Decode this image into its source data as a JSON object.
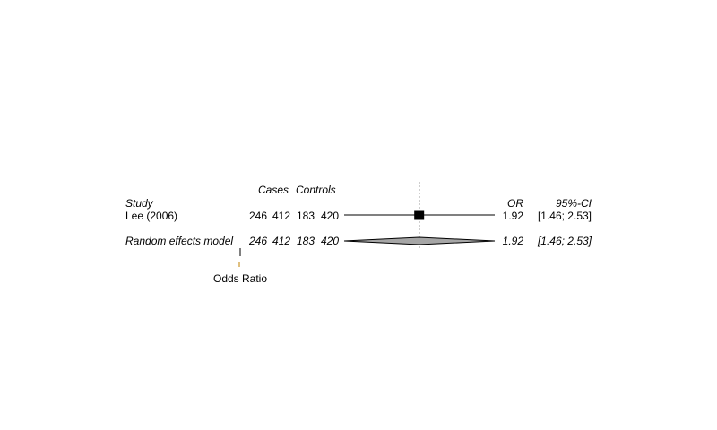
{
  "chart_data": {
    "type": "forest",
    "header": {
      "study": "Study",
      "cases": "Cases",
      "controls": "Controls",
      "or": "OR",
      "ci": "95%-CI"
    },
    "studies": [
      {
        "name": "Lee (2006)",
        "cases_events": "246",
        "cases_total": "412",
        "controls_events": "183",
        "controls_total": "420",
        "or": 1.92,
        "ci_low": 1.46,
        "ci_high": 2.53,
        "or_text": "1.92",
        "ci_text": "[1.46; 2.53]"
      }
    ],
    "pooled": {
      "name": "Random effects model",
      "cases_events": "246",
      "cases_total": "412",
      "controls_events": "183",
      "controls_total": "420",
      "or": 1.92,
      "ci_low": 1.46,
      "ci_high": 2.53,
      "or_text": "1.92",
      "ci_text": "[1.46; 2.53]"
    },
    "xlabel": "Odds Ratio",
    "xlim": [
      1.46,
      2.53
    ],
    "null_line": 1,
    "reference_line": 1.92
  }
}
